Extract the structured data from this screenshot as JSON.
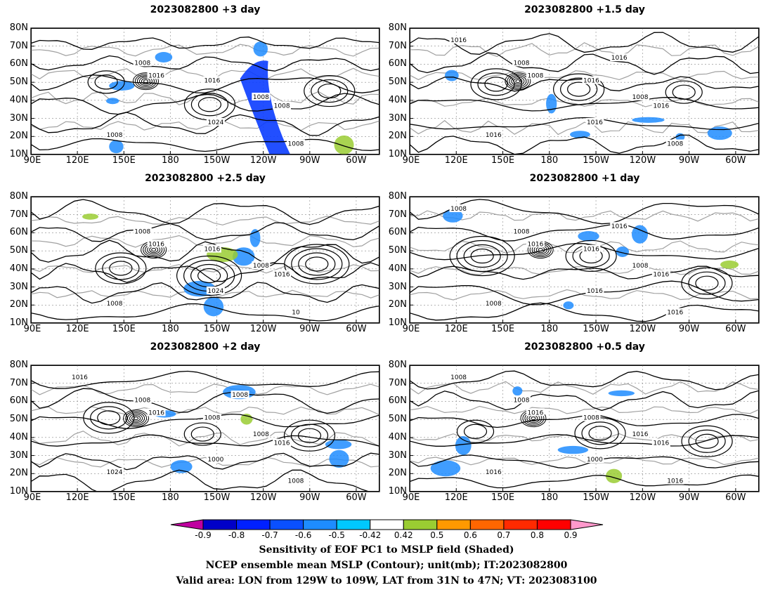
{
  "panels": [
    {
      "title": "2023082800 +3 day",
      "tags": [
        "1008",
        "1016",
        "1016",
        "1008",
        "1008",
        "1024",
        "1008",
        "1008"
      ]
    },
    {
      "title": "2023082800 +1.5 day",
      "tags": [
        "1008",
        "1008",
        "1016",
        "1008",
        "1016",
        "1016",
        "1016",
        "1008",
        "1016",
        "1016"
      ]
    },
    {
      "title": "2023082800 +2.5 day",
      "tags": [
        "1008",
        "1016",
        "1016",
        "1008",
        "1016",
        "1024",
        "1008",
        "10"
      ]
    },
    {
      "title": "2023082800 +1 day",
      "tags": [
        "1008",
        "1016",
        "1016",
        "1008",
        "1016",
        "1016",
        "1008",
        "1016",
        "1008",
        "1016"
      ]
    },
    {
      "title": "2023082800 +2 day",
      "tags": [
        "1008",
        "1016",
        "1008",
        "1008",
        "1016",
        "1000",
        "1024",
        "1008",
        "1016",
        "1008"
      ]
    },
    {
      "title": "2023082800 +0.5 day",
      "tags": [
        "1008",
        "1016",
        "1008",
        "1016",
        "1016",
        "1000",
        "1016",
        "1016",
        "1008"
      ]
    }
  ],
  "lat_ticks": [
    "80N",
    "70N",
    "60N",
    "50N",
    "40N",
    "30N",
    "20N",
    "10N"
  ],
  "lon_ticks": [
    "90E",
    "120E",
    "150E",
    "180",
    "150W",
    "120W",
    "90W",
    "60W"
  ],
  "colorbar": {
    "labels": [
      "-0.9",
      "-0.8",
      "-0.7",
      "-0.6",
      "-0.5",
      "-0.42",
      "0.42",
      "0.5",
      "0.6",
      "0.7",
      "0.8",
      "0.9"
    ],
    "colors": [
      "#c000a0",
      "#0000c8",
      "#0020ff",
      "#0a50ff",
      "#1e8cff",
      "#00c8ff",
      "#ffffff",
      "#9acd32",
      "#ff9900",
      "#ff6600",
      "#ff2a00",
      "#ff0000",
      "#ff99cc"
    ]
  },
  "caption": {
    "line1": "Sensitivity of EOF PC1 to MSLP field (Shaded)",
    "line2": "NCEP ensemble mean MSLP (Contour); unit(mb); IT:2023082800",
    "line3": "Valid area: LON from 129W to 109W, LAT from 31N to 47N; VT: 2023083100"
  },
  "colors": {
    "contour": "#000000",
    "coastline": "#a0a0a0",
    "shade_neg": "#1e8cff",
    "shade_pos": "#9acd32"
  }
}
